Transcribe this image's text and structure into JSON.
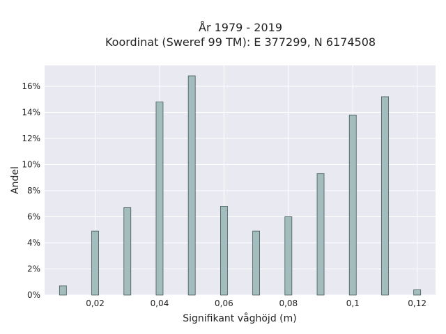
{
  "chart_data": {
    "type": "bar",
    "title_lines": [
      "År 1979 - 2019",
      "Koordinat (Sweref 99 TM): E 377299, N 6174508"
    ],
    "xlabel": "Signifikant våghöjd (m)",
    "ylabel": "Andel",
    "x": [
      0.01,
      0.02,
      0.03,
      0.04,
      0.05,
      0.06,
      0.07,
      0.08,
      0.09,
      0.1,
      0.11,
      0.12
    ],
    "values": [
      0.7,
      4.9,
      6.7,
      14.8,
      16.8,
      6.8,
      4.9,
      6.0,
      9.3,
      13.8,
      15.2,
      0.4
    ],
    "xlim": [
      0.0043,
      0.1257
    ],
    "ylim": [
      0,
      17.6
    ],
    "xticks": [
      0.02,
      0.04,
      0.06,
      0.08,
      0.1,
      0.12
    ],
    "xtick_labels": [
      "0,02",
      "0,04",
      "0,06",
      "0,08",
      "0,1",
      "0,12"
    ],
    "yticks": [
      0,
      2,
      4,
      6,
      8,
      10,
      12,
      14,
      16
    ],
    "ytick_labels": [
      "0%",
      "2%",
      "4%",
      "6%",
      "8%",
      "10%",
      "12%",
      "14%",
      "16%"
    ],
    "grid": true,
    "colors": {
      "plot_background": "#e9e9f1",
      "bar_fill": "#a3bcbd",
      "bar_edge": "#3f5856",
      "grid": "#ffffff"
    }
  }
}
